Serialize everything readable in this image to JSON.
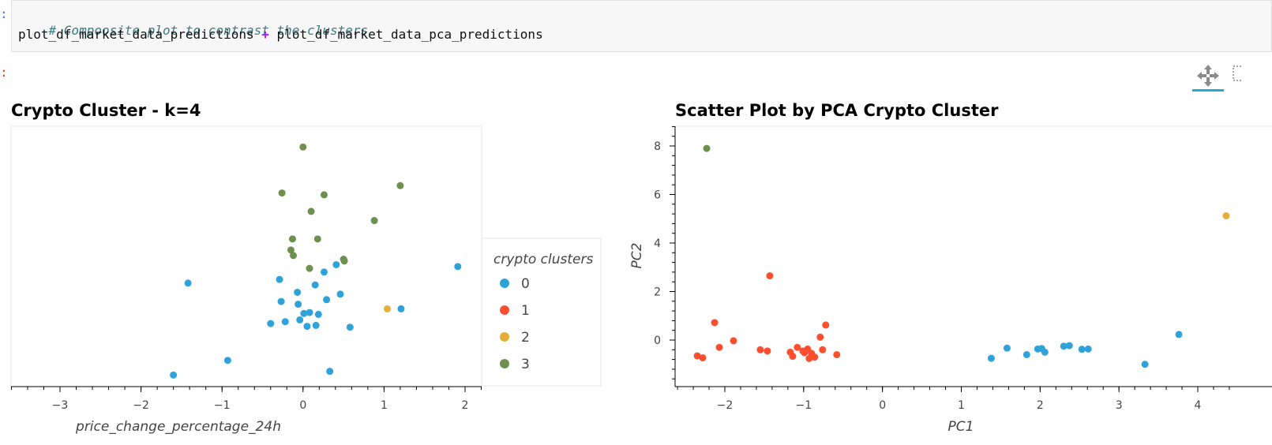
{
  "cell": {
    "prompt_marker": ":",
    "comment": "# Compoosite plot to contrast the clusters",
    "code_left": "plot_df_market_data_predictions",
    "code_op": "+",
    "code_right": "plot_df_market_data_pca_predictions",
    "output_marker": ":"
  },
  "toolbar": {
    "pan_icon": "move-arrows-icon",
    "box_zoom_icon": "box-zoom-icon",
    "active_color": "#26a8d8"
  },
  "colors": {
    "cluster_0": "#30a2da",
    "cluster_1": "#fc4f30",
    "cluster_2": "#e5ae38",
    "cluster_3": "#6d904f"
  },
  "chart_data": [
    {
      "type": "scatter",
      "title": "Crypto Cluster - k=4",
      "xlabel": "price_change_percentage_24h",
      "ylabel": "",
      "xlim": [
        -3.6,
        2.2
      ],
      "xticks": [
        "−3",
        "−2",
        "−1",
        "0",
        "1",
        "2"
      ],
      "xtick_values": [
        -3,
        -2,
        -1,
        0,
        1,
        2
      ],
      "y_axis_visible": false,
      "legend": {
        "title": "crypto clusters",
        "position": "right",
        "entries": [
          "0",
          "1",
          "2",
          "3"
        ]
      },
      "series": [
        {
          "name": "0",
          "color": "#30a2da",
          "points": [
            [
              -1.6,
              -2.4
            ],
            [
              -0.93,
              -1.6
            ],
            [
              -1.42,
              2.6
            ],
            [
              -0.29,
              2.8
            ],
            [
              -0.27,
              1.6
            ],
            [
              -0.4,
              0.4
            ],
            [
              -0.22,
              0.5
            ],
            [
              -0.07,
              2.1
            ],
            [
              -0.06,
              1.45
            ],
            [
              -0.04,
              0.6
            ],
            [
              0.01,
              0.95
            ],
            [
              0.05,
              0.25
            ],
            [
              0.08,
              1.0
            ],
            [
              0.15,
              2.5
            ],
            [
              0.16,
              0.3
            ],
            [
              0.19,
              0.9
            ],
            [
              0.26,
              3.2
            ],
            [
              0.29,
              1.7
            ],
            [
              0.33,
              -2.2
            ],
            [
              0.41,
              3.6
            ],
            [
              0.46,
              2.0
            ],
            [
              0.58,
              0.2
            ],
            [
              1.21,
              1.2
            ],
            [
              1.91,
              3.5
            ]
          ]
        },
        {
          "name": "2",
          "color": "#e5ae38",
          "points": [
            [
              1.04,
              1.2
            ]
          ]
        },
        {
          "name": "3",
          "color": "#6d904f",
          "points": [
            [
              0.0,
              10.0
            ],
            [
              -0.26,
              7.5
            ],
            [
              0.26,
              7.4
            ],
            [
              0.1,
              6.5
            ],
            [
              1.2,
              7.9
            ],
            [
              0.88,
              6.0
            ],
            [
              -0.13,
              5.0
            ],
            [
              0.18,
              5.0
            ],
            [
              -0.15,
              4.4
            ],
            [
              -0.12,
              4.1
            ],
            [
              0.5,
              3.9
            ],
            [
              0.51,
              3.8
            ],
            [
              0.08,
              3.4
            ]
          ]
        }
      ]
    },
    {
      "type": "scatter",
      "title": "Scatter Plot by PCA Crypto Cluster",
      "xlabel": "PC1",
      "ylabel": "PC2",
      "xlim": [
        -2.6,
        4.5
      ],
      "ylim": [
        -1.9,
        8.8
      ],
      "xticks": [
        "−2",
        "−1",
        "0",
        "1",
        "2",
        "3",
        "4"
      ],
      "xtick_values": [
        -2,
        -1,
        0,
        1,
        2,
        3,
        4
      ],
      "yticks": [
        "0",
        "2",
        "4",
        "6",
        "8"
      ],
      "ytick_values": [
        0,
        2,
        4,
        6,
        8
      ],
      "series": [
        {
          "name": "0",
          "color": "#30a2da",
          "points": [
            [
              1.38,
              -0.75
            ],
            [
              1.58,
              -0.33
            ],
            [
              1.83,
              -0.6
            ],
            [
              1.97,
              -0.37
            ],
            [
              2.02,
              -0.35
            ],
            [
              2.06,
              -0.5
            ],
            [
              2.3,
              -0.25
            ],
            [
              2.37,
              -0.23
            ],
            [
              2.53,
              -0.38
            ],
            [
              2.61,
              -0.37
            ],
            [
              3.33,
              -1.0
            ],
            [
              3.76,
              0.23
            ]
          ]
        },
        {
          "name": "1",
          "color": "#fc4f30",
          "points": [
            [
              -2.35,
              -0.65
            ],
            [
              -2.28,
              -0.73
            ],
            [
              -2.13,
              0.72
            ],
            [
              -2.07,
              -0.3
            ],
            [
              -1.89,
              -0.03
            ],
            [
              -1.55,
              -0.4
            ],
            [
              -1.46,
              -0.45
            ],
            [
              -1.43,
              2.65
            ],
            [
              -1.17,
              -0.5
            ],
            [
              -1.14,
              -0.67
            ],
            [
              -1.08,
              -0.3
            ],
            [
              -1.01,
              -0.45
            ],
            [
              -0.99,
              -0.52
            ],
            [
              -0.95,
              -0.37
            ],
            [
              -0.93,
              -0.76
            ],
            [
              -0.9,
              -0.55
            ],
            [
              -0.86,
              -0.7
            ],
            [
              -0.79,
              0.12
            ],
            [
              -0.76,
              -0.4
            ],
            [
              -0.72,
              0.62
            ],
            [
              -0.58,
              -0.6
            ]
          ]
        },
        {
          "name": "2",
          "color": "#e5ae38",
          "points": [
            [
              4.36,
              5.12
            ]
          ]
        },
        {
          "name": "3",
          "color": "#6d904f",
          "points": [
            [
              -2.23,
              7.9
            ]
          ]
        }
      ]
    }
  ]
}
